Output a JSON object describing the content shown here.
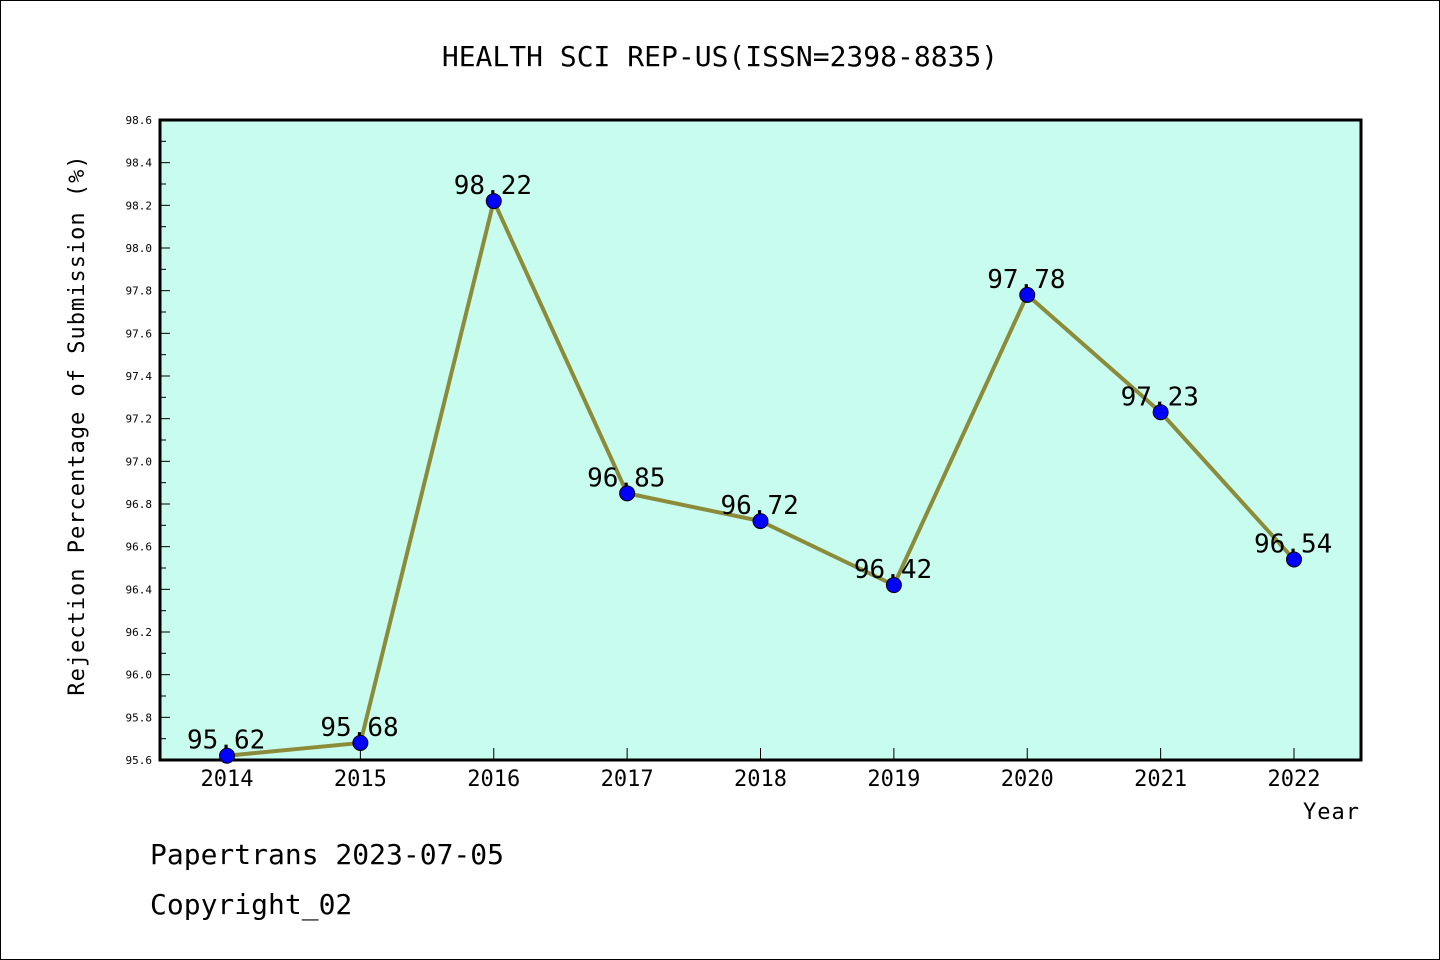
{
  "chart_data": {
    "type": "line",
    "title": "HEALTH SCI REP-US(ISSN=2398-8835)",
    "xlabel": "Year",
    "ylabel": "Rejection Percentage of Submission (%)",
    "categories": [
      "2014",
      "2015",
      "2016",
      "2017",
      "2018",
      "2019",
      "2020",
      "2021",
      "2022"
    ],
    "values": [
      95.62,
      95.68,
      98.22,
      96.85,
      96.72,
      96.42,
      97.78,
      97.23,
      96.54
    ],
    "data_labels": [
      "95.62",
      "95.68",
      "98.22",
      "96.85",
      "96.72",
      "96.42",
      "97.78",
      "97.23",
      "96.54"
    ],
    "ylim": [
      95.6,
      98.6
    ],
    "yticks": [
      "95.6",
      "95.8",
      "96.0",
      "96.2",
      "96.4",
      "96.6",
      "96.8",
      "97.0",
      "97.2",
      "97.4",
      "97.6",
      "97.8",
      "98.0",
      "98.2",
      "98.4",
      "98.6"
    ],
    "grid": false,
    "colors": {
      "plot_background": "#c8fcee",
      "line": "#8b8b3a",
      "marker": "#0000ff"
    }
  },
  "footer": {
    "line1": "Papertrans 2023-07-05",
    "line2": "Copyright_02"
  }
}
